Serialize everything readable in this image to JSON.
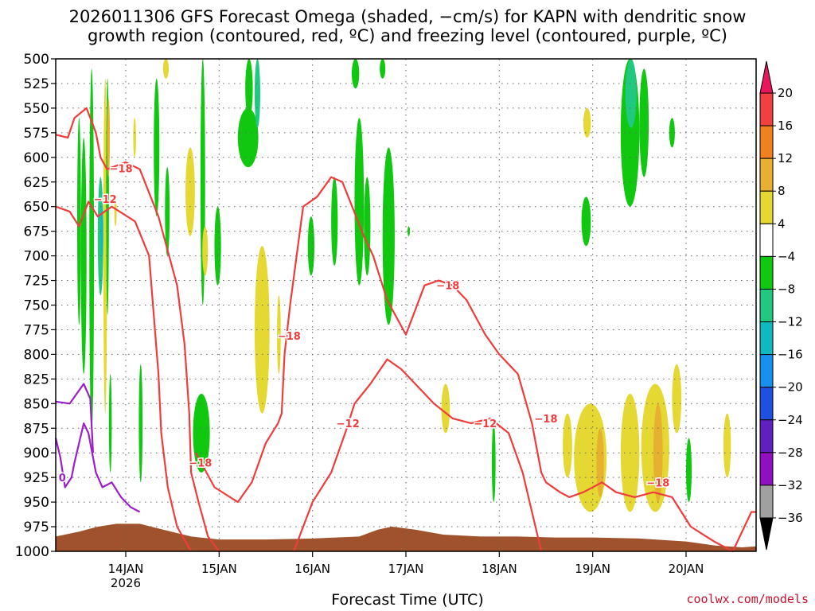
{
  "title_line1": "2026011306 GFS Forecast Omega (shaded, −cm/s) for KAPN with dendritic snow",
  "title_line2": "growth region (contoured, red, ºC) and freezing level (contoured, purple, ºC)",
  "xlabel": "Forecast Time (UTC)",
  "credit": "coolwx.com/models",
  "colors": {
    "dgz_contour": "#f03c3c",
    "freezing_contour": "#9b1ec8",
    "terrain": "#a0522d",
    "grid": "#666666"
  },
  "chart_data": {
    "type": "heatmap",
    "y_axis": {
      "ticks": [
        500,
        525,
        550,
        575,
        600,
        625,
        650,
        675,
        700,
        725,
        750,
        775,
        800,
        825,
        850,
        875,
        900,
        925,
        950,
        975,
        1000
      ],
      "range": [
        500,
        1000
      ],
      "inverted": true
    },
    "x_axis": {
      "ticks": [
        {
          "label": "14JAN",
          "sub": "2026",
          "day": 14
        },
        {
          "label": "15JAN",
          "sub": "",
          "day": 15
        },
        {
          "label": "16JAN",
          "sub": "",
          "day": 16
        },
        {
          "label": "17JAN",
          "sub": "",
          "day": 17
        },
        {
          "label": "18JAN",
          "sub": "",
          "day": 18
        },
        {
          "label": "19JAN",
          "sub": "",
          "day": 19
        },
        {
          "label": "20JAN",
          "sub": "",
          "day": 20
        }
      ],
      "range_days": [
        13.25,
        20.75
      ]
    },
    "grid": true,
    "colorbar": {
      "labels": [
        "20",
        "16",
        "12",
        "8",
        "4",
        "−4",
        "−8",
        "−12",
        "−16",
        "−20",
        "−24",
        "−28",
        "−32",
        "−36"
      ],
      "colors": [
        "#e8175d",
        "#f04040",
        "#f08020",
        "#e8b030",
        "#e6d832",
        "#ffffff",
        "#10c810",
        "#20c880",
        "#10b8c0",
        "#1890f0",
        "#2050e0",
        "#6020c0",
        "#9010c0",
        "#a0a0a0",
        "#000000"
      ]
    },
    "contour_labels": [
      {
        "text": "−18",
        "day": 13.95,
        "p": 611
      },
      {
        "text": "−12",
        "day": 13.78,
        "p": 642
      },
      {
        "text": "−18",
        "day": 14.8,
        "p": 910
      },
      {
        "text": "−18",
        "day": 15.75,
        "p": 781
      },
      {
        "text": "−12",
        "day": 16.38,
        "p": 870
      },
      {
        "text": "−18",
        "day": 17.45,
        "p": 730
      },
      {
        "text": "−12",
        "day": 17.85,
        "p": 870
      },
      {
        "text": "−18",
        "day": 18.5,
        "p": 865
      },
      {
        "text": "−18",
        "day": 19.7,
        "p": 930
      },
      {
        "text": "0",
        "day": 13.32,
        "p": 925
      }
    ],
    "shading": [
      {
        "level": -4,
        "day0": 13.48,
        "day1": 13.52,
        "p0": 560,
        "p1": 770
      },
      {
        "level": -4,
        "day0": 13.52,
        "day1": 13.58,
        "p0": 580,
        "p1": 820
      },
      {
        "level": -4,
        "day0": 13.61,
        "day1": 13.66,
        "p0": 510,
        "p1": 880
      },
      {
        "level": -8,
        "day0": 13.7,
        "day1": 13.76,
        "p0": 620,
        "p1": 740
      },
      {
        "level": -12,
        "day0": 13.73,
        "day1": 13.76,
        "p0": 650,
        "p1": 700
      },
      {
        "level": 4,
        "day0": 13.76,
        "day1": 13.8,
        "p0": 520,
        "p1": 860
      },
      {
        "level": -4,
        "day0": 13.79,
        "day1": 13.82,
        "p0": 520,
        "p1": 760
      },
      {
        "level": 8,
        "day0": 13.8,
        "day1": 13.83,
        "p0": 540,
        "p1": 620
      },
      {
        "level": -4,
        "day0": 13.82,
        "day1": 13.85,
        "p0": 820,
        "p1": 920
      },
      {
        "level": 4,
        "day0": 13.88,
        "day1": 13.9,
        "p0": 640,
        "p1": 670
      },
      {
        "level": -4,
        "day0": 14.14,
        "day1": 14.18,
        "p0": 810,
        "p1": 930
      },
      {
        "level": 4,
        "day0": 14.08,
        "day1": 14.11,
        "p0": 560,
        "p1": 600
      },
      {
        "level": -4,
        "day0": 14.3,
        "day1": 14.36,
        "p0": 520,
        "p1": 660
      },
      {
        "level": 4,
        "day0": 14.4,
        "day1": 14.46,
        "p0": 500,
        "p1": 520
      },
      {
        "level": -4,
        "day0": 14.42,
        "day1": 14.47,
        "p0": 610,
        "p1": 700
      },
      {
        "level": 4,
        "day0": 14.64,
        "day1": 14.74,
        "p0": 590,
        "p1": 680
      },
      {
        "level": -4,
        "day0": 14.72,
        "day1": 14.9,
        "p0": 840,
        "p1": 920
      },
      {
        "level": -4,
        "day0": 14.8,
        "day1": 14.85,
        "p0": 500,
        "p1": 750
      },
      {
        "level": 4,
        "day0": 14.82,
        "day1": 14.88,
        "p0": 670,
        "p1": 720
      },
      {
        "level": -4,
        "day0": 14.95,
        "day1": 15.02,
        "p0": 650,
        "p1": 730
      },
      {
        "level": -4,
        "day0": 15.2,
        "day1": 15.42,
        "p0": 550,
        "p1": 610
      },
      {
        "level": -4,
        "day0": 15.28,
        "day1": 15.36,
        "p0": 500,
        "p1": 560
      },
      {
        "level": -8,
        "day0": 15.38,
        "day1": 15.44,
        "p0": 500,
        "p1": 570
      },
      {
        "level": 4,
        "day0": 15.38,
        "day1": 15.54,
        "p0": 690,
        "p1": 860
      },
      {
        "level": 4,
        "day0": 15.62,
        "day1": 15.66,
        "p0": 740,
        "p1": 820
      },
      {
        "level": -4,
        "day0": 15.95,
        "day1": 16.02,
        "p0": 660,
        "p1": 720
      },
      {
        "level": -4,
        "day0": 16.2,
        "day1": 16.27,
        "p0": 620,
        "p1": 710
      },
      {
        "level": -4,
        "day0": 16.42,
        "day1": 16.5,
        "p0": 500,
        "p1": 530
      },
      {
        "level": -4,
        "day0": 16.45,
        "day1": 16.55,
        "p0": 560,
        "p1": 730
      },
      {
        "level": -4,
        "day0": 16.55,
        "day1": 16.62,
        "p0": 620,
        "p1": 720
      },
      {
        "level": -4,
        "day0": 16.72,
        "day1": 16.78,
        "p0": 500,
        "p1": 520
      },
      {
        "level": -4,
        "day0": 16.75,
        "day1": 16.88,
        "p0": 590,
        "p1": 770
      },
      {
        "level": -4,
        "day0": 17.02,
        "day1": 17.04,
        "p0": 670,
        "p1": 680
      },
      {
        "level": 4,
        "day0": 17.38,
        "day1": 17.47,
        "p0": 830,
        "p1": 880
      },
      {
        "level": -4,
        "day0": 17.92,
        "day1": 17.96,
        "p0": 870,
        "p1": 950
      },
      {
        "level": -4,
        "day0": 18.88,
        "day1": 18.98,
        "p0": 640,
        "p1": 690
      },
      {
        "level": 4,
        "day0": 18.9,
        "day1": 18.98,
        "p0": 550,
        "p1": 580
      },
      {
        "level": 4,
        "day0": 18.68,
        "day1": 18.78,
        "p0": 860,
        "p1": 925
      },
      {
        "level": 4,
        "day0": 18.8,
        "day1": 19.15,
        "p0": 850,
        "p1": 960
      },
      {
        "level": 8,
        "day0": 19.04,
        "day1": 19.12,
        "p0": 875,
        "p1": 945
      },
      {
        "level": -4,
        "day0": 19.3,
        "day1": 19.5,
        "p0": 500,
        "p1": 650
      },
      {
        "level": -8,
        "day0": 19.35,
        "day1": 19.47,
        "p0": 500,
        "p1": 570
      },
      {
        "level": -4,
        "day0": 19.5,
        "day1": 19.6,
        "p0": 510,
        "p1": 620
      },
      {
        "level": 4,
        "day0": 19.3,
        "day1": 19.5,
        "p0": 840,
        "p1": 960
      },
      {
        "level": 4,
        "day0": 19.52,
        "day1": 19.82,
        "p0": 830,
        "p1": 960
      },
      {
        "level": 8,
        "day0": 19.65,
        "day1": 19.75,
        "p0": 850,
        "p1": 950
      },
      {
        "level": -4,
        "day0": 19.82,
        "day1": 19.88,
        "p0": 560,
        "p1": 590
      },
      {
        "level": 4,
        "day0": 19.85,
        "day1": 19.95,
        "p0": 810,
        "p1": 880
      },
      {
        "level": -4,
        "day0": 20.0,
        "day1": 20.06,
        "p0": 885,
        "p1": 950
      },
      {
        "level": 4,
        "day0": 20.4,
        "day1": 20.48,
        "p0": 860,
        "p1": 925
      }
    ],
    "dgz_contours": [
      {
        "name": "-18 a",
        "points": [
          [
            13.25,
            577
          ],
          [
            13.38,
            580
          ],
          [
            13.45,
            560
          ],
          [
            13.58,
            550
          ],
          [
            13.68,
            575
          ],
          [
            13.73,
            600
          ],
          [
            13.8,
            612
          ],
          [
            14.0,
            605
          ],
          [
            14.15,
            612
          ],
          [
            14.35,
            660
          ],
          [
            14.55,
            730
          ],
          [
            14.63,
            790
          ],
          [
            14.68,
            860
          ],
          [
            14.7,
            920
          ],
          [
            14.78,
            950
          ],
          [
            14.88,
            985
          ],
          [
            15.0,
            1000
          ]
        ]
      },
      {
        "name": "-12 a",
        "points": [
          [
            13.25,
            650
          ],
          [
            13.4,
            655
          ],
          [
            13.5,
            670
          ],
          [
            13.6,
            645
          ],
          [
            13.7,
            660
          ],
          [
            13.85,
            650
          ],
          [
            14.1,
            665
          ],
          [
            14.25,
            700
          ],
          [
            14.3,
            760
          ],
          [
            14.35,
            820
          ],
          [
            14.38,
            880
          ],
          [
            14.45,
            935
          ],
          [
            14.55,
            975
          ],
          [
            14.7,
            1000
          ]
        ]
      },
      {
        "name": "-12 b",
        "points": [
          [
            14.75,
            900
          ],
          [
            14.95,
            935
          ],
          [
            15.2,
            950
          ],
          [
            15.35,
            930
          ],
          [
            15.5,
            890
          ],
          [
            15.63,
            870
          ],
          [
            15.67,
            860
          ],
          [
            15.7,
            800
          ],
          [
            15.76,
            750
          ],
          [
            15.9,
            650
          ],
          [
            16.05,
            640
          ],
          [
            16.2,
            620
          ],
          [
            16.32,
            625
          ],
          [
            16.55,
            680
          ],
          [
            16.65,
            700
          ],
          [
            16.8,
            745
          ],
          [
            17.0,
            780
          ],
          [
            17.2,
            730
          ],
          [
            17.35,
            725
          ],
          [
            17.5,
            730
          ],
          [
            17.65,
            745
          ],
          [
            17.85,
            780
          ],
          [
            18.0,
            800
          ],
          [
            18.2,
            820
          ],
          [
            18.35,
            870
          ],
          [
            18.45,
            920
          ],
          [
            18.5,
            930
          ],
          [
            18.65,
            940
          ],
          [
            18.75,
            945
          ],
          [
            18.9,
            940
          ],
          [
            19.1,
            930
          ],
          [
            19.25,
            940
          ],
          [
            19.45,
            945
          ],
          [
            19.65,
            940
          ],
          [
            19.85,
            945
          ],
          [
            20.05,
            975
          ],
          [
            20.3,
            990
          ],
          [
            20.5,
            1000
          ],
          [
            20.7,
            960
          ],
          [
            20.75,
            960
          ]
        ]
      },
      {
        "name": "-12 c",
        "points": [
          [
            15.8,
            1000
          ],
          [
            16.0,
            950
          ],
          [
            16.2,
            920
          ],
          [
            16.35,
            880
          ],
          [
            16.45,
            850
          ],
          [
            16.62,
            830
          ],
          [
            16.8,
            805
          ],
          [
            16.95,
            815
          ],
          [
            17.1,
            830
          ],
          [
            17.3,
            850
          ],
          [
            17.5,
            865
          ],
          [
            17.7,
            870
          ],
          [
            17.9,
            865
          ],
          [
            18.1,
            880
          ],
          [
            18.25,
            920
          ],
          [
            18.35,
            960
          ],
          [
            18.45,
            1000
          ]
        ]
      }
    ],
    "freezing_contours": [
      {
        "name": "0 a",
        "points": [
          [
            13.25,
            885
          ],
          [
            13.3,
            905
          ],
          [
            13.35,
            935
          ],
          [
            13.42,
            925
          ],
          [
            13.45,
            910
          ],
          [
            13.55,
            870
          ],
          [
            13.6,
            880
          ],
          [
            13.68,
            920
          ],
          [
            13.75,
            935
          ],
          [
            13.85,
            930
          ],
          [
            13.95,
            945
          ],
          [
            14.05,
            955
          ],
          [
            14.15,
            960
          ]
        ]
      },
      {
        "name": "0 b",
        "points": [
          [
            13.25,
            848
          ],
          [
            13.4,
            850
          ],
          [
            13.55,
            830
          ],
          [
            13.62,
            845
          ],
          [
            13.65,
            900
          ]
        ]
      }
    ],
    "terrain": [
      [
        13.25,
        985
      ],
      [
        13.5,
        980
      ],
      [
        13.7,
        975
      ],
      [
        13.9,
        972
      ],
      [
        14.15,
        972
      ],
      [
        14.4,
        978
      ],
      [
        14.7,
        985
      ],
      [
        15.0,
        988
      ],
      [
        15.5,
        988
      ],
      [
        16.0,
        987
      ],
      [
        16.5,
        985
      ],
      [
        16.7,
        978
      ],
      [
        16.85,
        975
      ],
      [
        17.1,
        978
      ],
      [
        17.4,
        983
      ],
      [
        17.8,
        985
      ],
      [
        18.2,
        985
      ],
      [
        18.6,
        986
      ],
      [
        19.0,
        986
      ],
      [
        19.5,
        987
      ],
      [
        20.0,
        990
      ],
      [
        20.3,
        994
      ],
      [
        20.6,
        996
      ],
      [
        20.75,
        995
      ]
    ]
  }
}
